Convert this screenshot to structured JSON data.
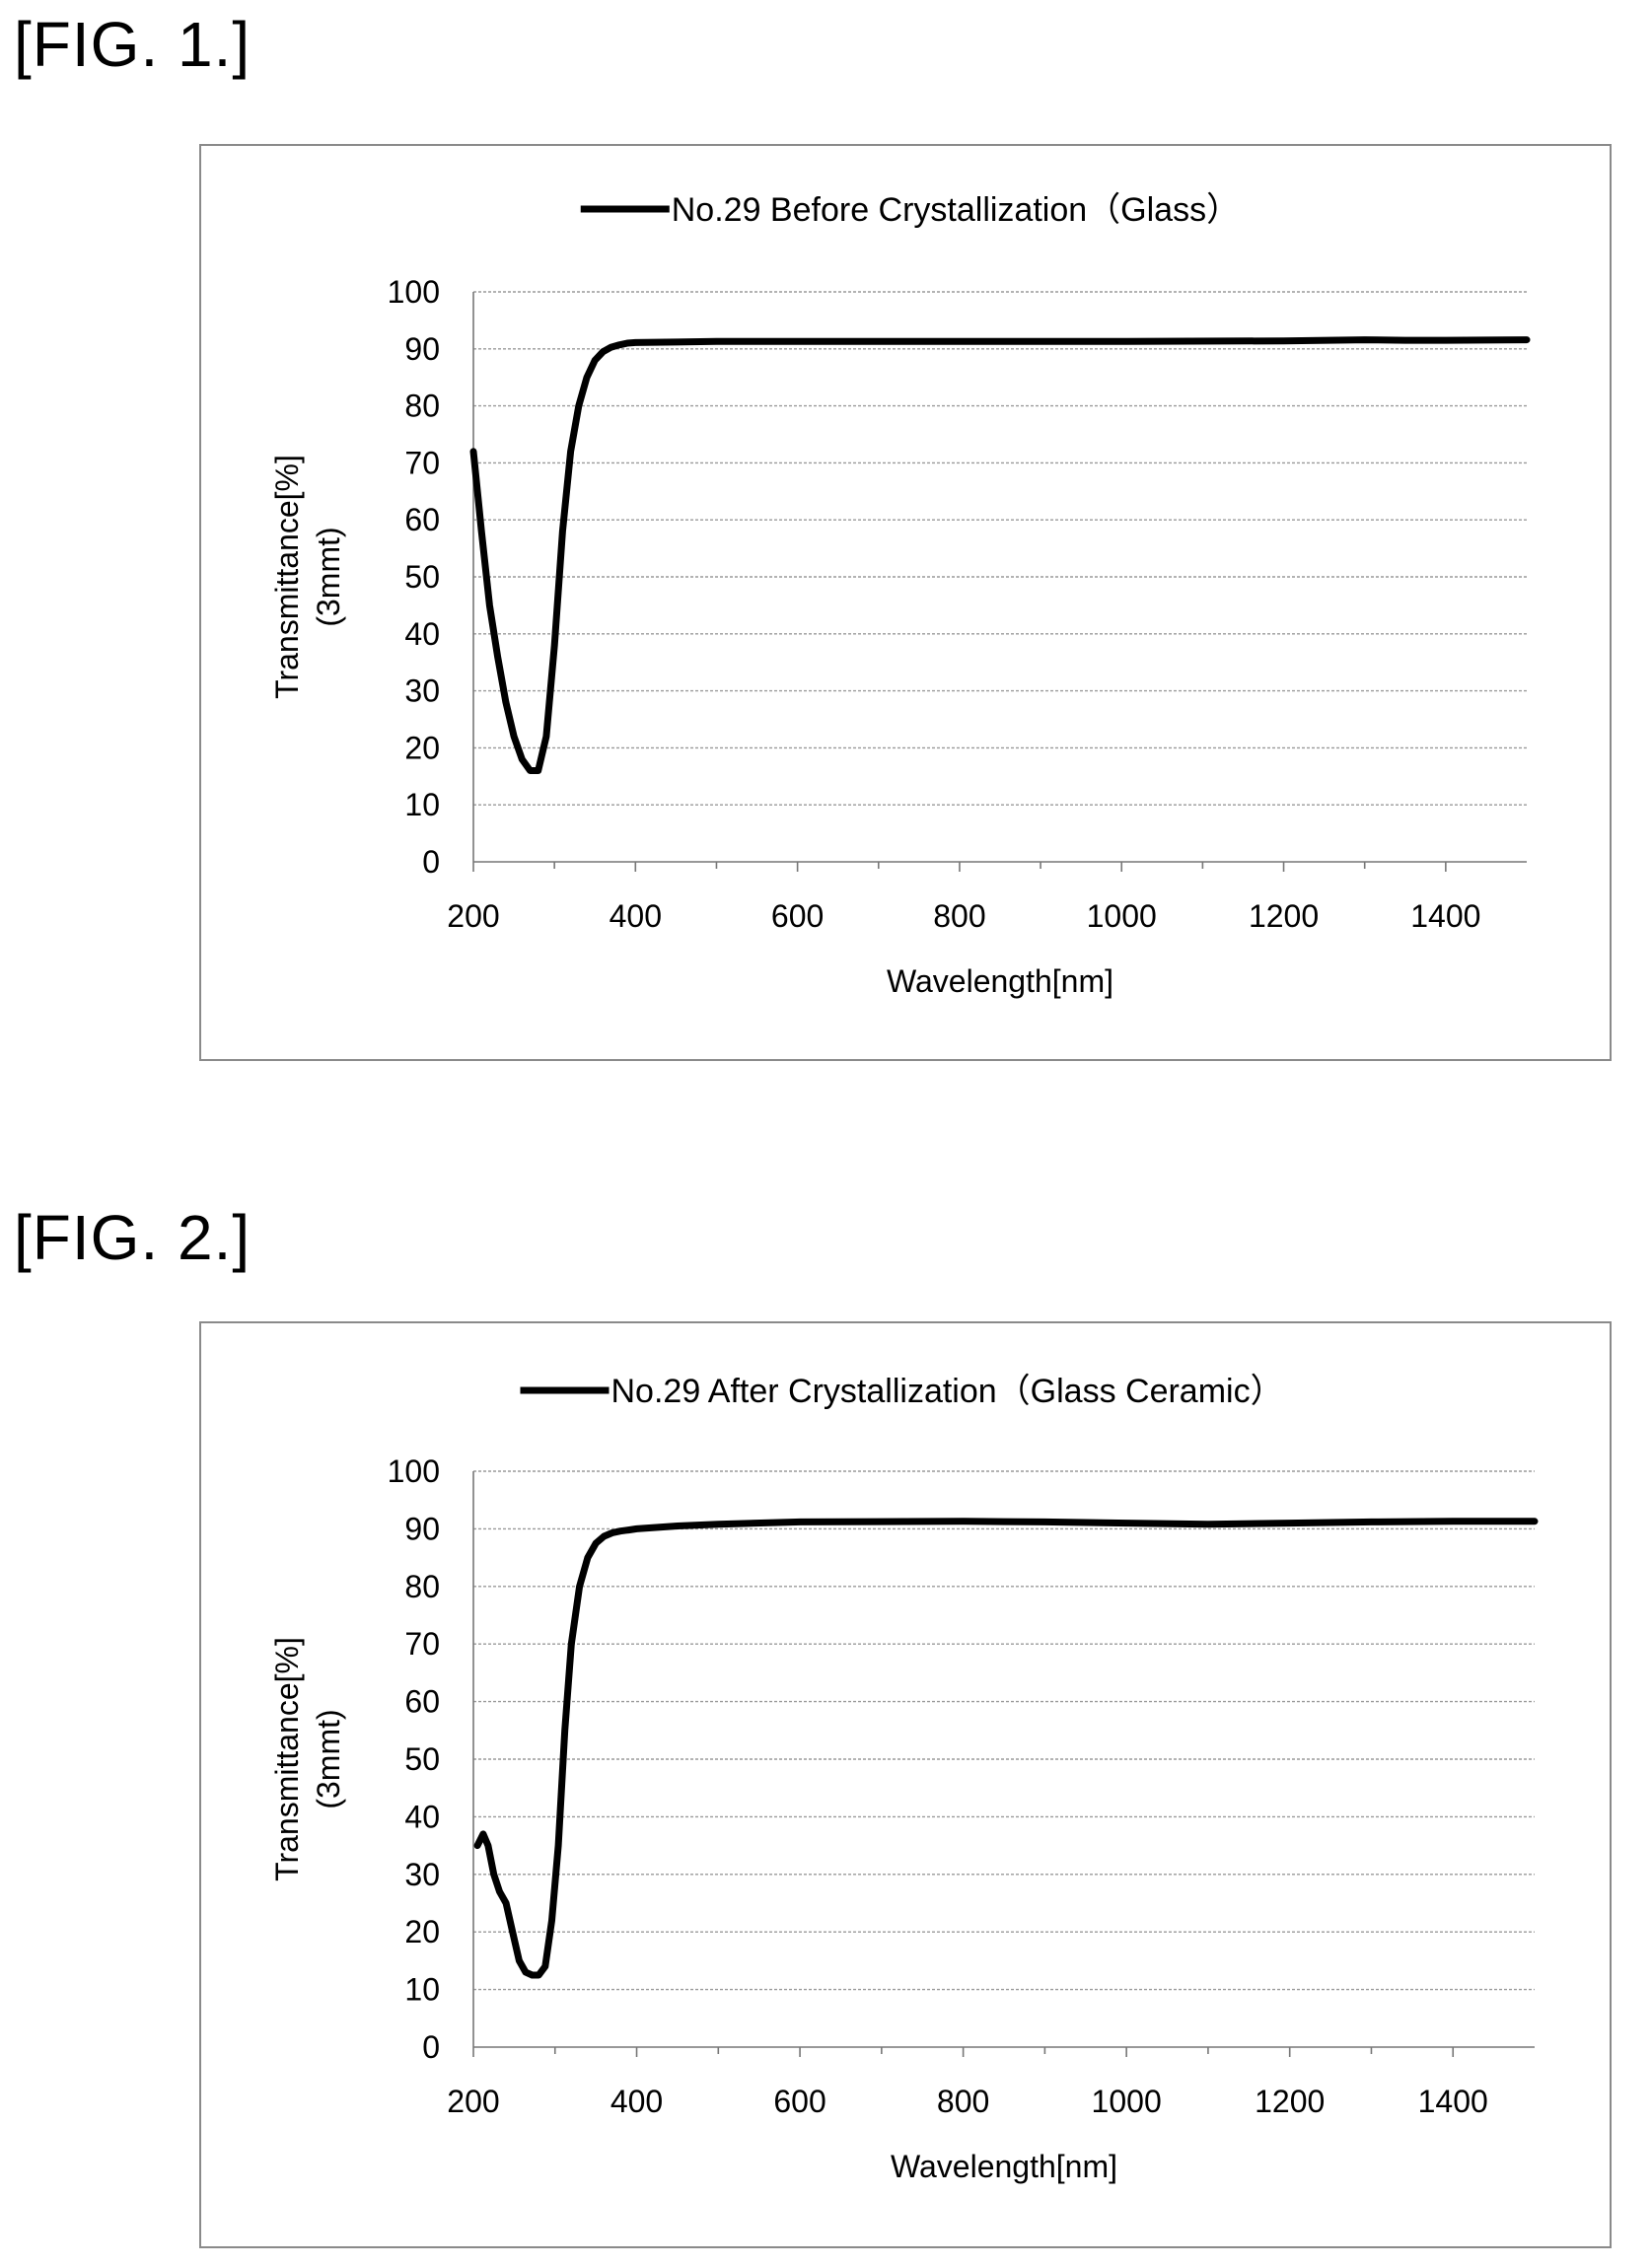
{
  "figures": [
    {
      "label": "[FIG. 1.]"
    },
    {
      "label": "[FIG. 2.]"
    }
  ],
  "chart_data": [
    {
      "type": "line",
      "title": "",
      "xlabel": "Wavelength[nm]",
      "ylabel": "Transmittance[%]",
      "ylabel2": "(3mmt)",
      "xlim": [
        200,
        1500
      ],
      "ylim": [
        0,
        100
      ],
      "xticks": [
        200,
        400,
        600,
        800,
        1000,
        1200,
        1400
      ],
      "yticks": [
        0,
        10,
        20,
        30,
        40,
        50,
        60,
        70,
        80,
        90,
        100
      ],
      "grid": true,
      "legend_position": "top",
      "series": [
        {
          "name": "No.29 Before Crystallization（Glass）",
          "color": "#000000",
          "x": [
            200,
            210,
            220,
            230,
            240,
            250,
            260,
            270,
            280,
            290,
            300,
            310,
            320,
            330,
            340,
            350,
            360,
            370,
            380,
            390,
            400,
            450,
            500,
            600,
            800,
            1000,
            1200,
            1300,
            1350,
            1400,
            1500
          ],
          "y": [
            72,
            58,
            45,
            36,
            28,
            22,
            18,
            16,
            16,
            22,
            38,
            58,
            72,
            80,
            85,
            88,
            89.5,
            90.3,
            90.7,
            91,
            91.1,
            91.2,
            91.3,
            91.3,
            91.3,
            91.3,
            91.4,
            91.6,
            91.5,
            91.5,
            91.6
          ]
        }
      ]
    },
    {
      "type": "line",
      "title": "",
      "xlabel": "Wavelength[nm]",
      "ylabel": "Transmittance[%]",
      "ylabel2": "(3mmt)",
      "xlim": [
        200,
        1500
      ],
      "ylim": [
        0,
        100
      ],
      "xticks": [
        200,
        400,
        600,
        800,
        1000,
        1200,
        1400
      ],
      "yticks": [
        0,
        10,
        20,
        30,
        40,
        50,
        60,
        70,
        80,
        90,
        100
      ],
      "grid": true,
      "legend_position": "top",
      "series": [
        {
          "name": "No.29 After Crystallization（Glass Ceramic）",
          "color": "#000000",
          "x": [
            205,
            212,
            218,
            225,
            232,
            240,
            248,
            256,
            264,
            272,
            280,
            288,
            296,
            304,
            312,
            320,
            330,
            340,
            350,
            360,
            370,
            380,
            390,
            400,
            450,
            500,
            600,
            800,
            900,
            1000,
            1100,
            1200,
            1300,
            1400,
            1500
          ],
          "y": [
            35,
            37,
            35,
            30,
            27,
            25,
            20,
            15,
            13,
            12.5,
            12.5,
            14,
            22,
            35,
            55,
            70,
            80,
            85,
            87.5,
            88.7,
            89.3,
            89.6,
            89.8,
            90,
            90.5,
            90.8,
            91.2,
            91.3,
            91.2,
            91,
            90.8,
            91,
            91.2,
            91.3,
            91.3
          ]
        }
      ]
    }
  ]
}
